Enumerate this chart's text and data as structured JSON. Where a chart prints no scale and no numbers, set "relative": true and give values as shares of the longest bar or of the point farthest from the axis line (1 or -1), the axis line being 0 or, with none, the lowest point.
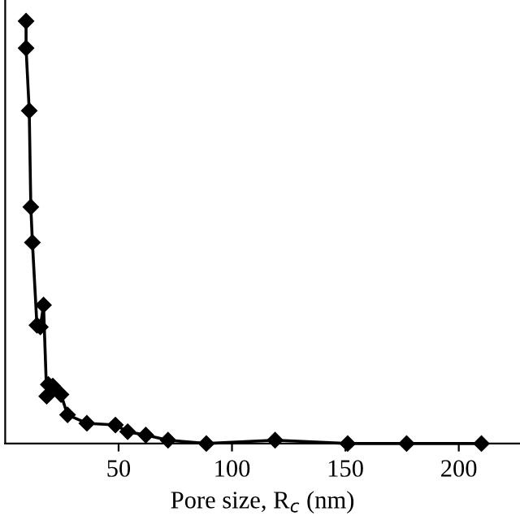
{
  "chart_data": {
    "type": "line",
    "xlabel": "Pore size, R$_{c}$ (nm)",
    "relative": true,
    "xlim": [
      0,
      227
    ],
    "xticks": [
      50,
      100,
      150,
      200
    ],
    "marker": "diamond",
    "line_style": "solid",
    "grid": false,
    "legend": false,
    "series": [
      {
        "color": "#000000",
        "x": [
          9.2,
          9.2,
          10.6,
          11.3,
          12,
          14,
          15.5,
          16.9,
          18.3,
          19,
          21,
          24.6,
          27.5,
          36,
          48.6,
          54,
          62,
          71.8,
          88.7,
          119,
          151,
          177,
          210
        ],
        "values": [
          1.0,
          0.936,
          0.788,
          0.56,
          0.476,
          0.28,
          0.276,
          0.328,
          0.112,
          0.14,
          0.136,
          0.116,
          0.068,
          0.048,
          0.044,
          0.028,
          0.02,
          0.008,
          0.0,
          0.008,
          0.0,
          0.0,
          0.0
        ]
      }
    ]
  }
}
